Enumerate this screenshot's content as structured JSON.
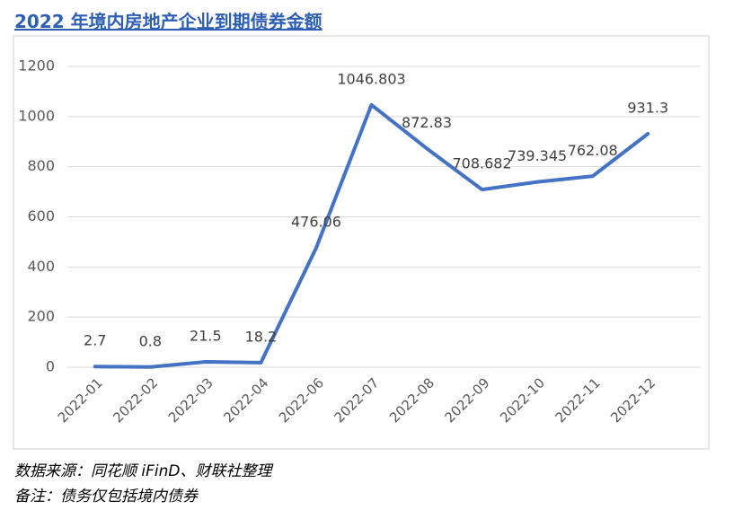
{
  "chart_data": {
    "type": "line",
    "title": "2022 年境内房地产企业到期债券金额",
    "categories": [
      "2022-01",
      "2022-02",
      "2022-03",
      "2022-04",
      "2022-06",
      "2022-07",
      "2022-08",
      "2022-09",
      "2022-10",
      "2022-11",
      "2022-12"
    ],
    "values": [
      2.7,
      0.8,
      21.5,
      18.2,
      476.06,
      1046.803,
      872.83,
      708.682,
      739.345,
      762.08,
      931.3
    ],
    "color": "#4472c4",
    "ylim": [
      0,
      1200
    ],
    "yticks": [
      0,
      200,
      400,
      600,
      800,
      1000,
      1200
    ],
    "grid": true
  },
  "notes": [
    "数据来源：同花顺 iFinD、财联社整理",
    "备注：债务仅包括境内债券"
  ]
}
